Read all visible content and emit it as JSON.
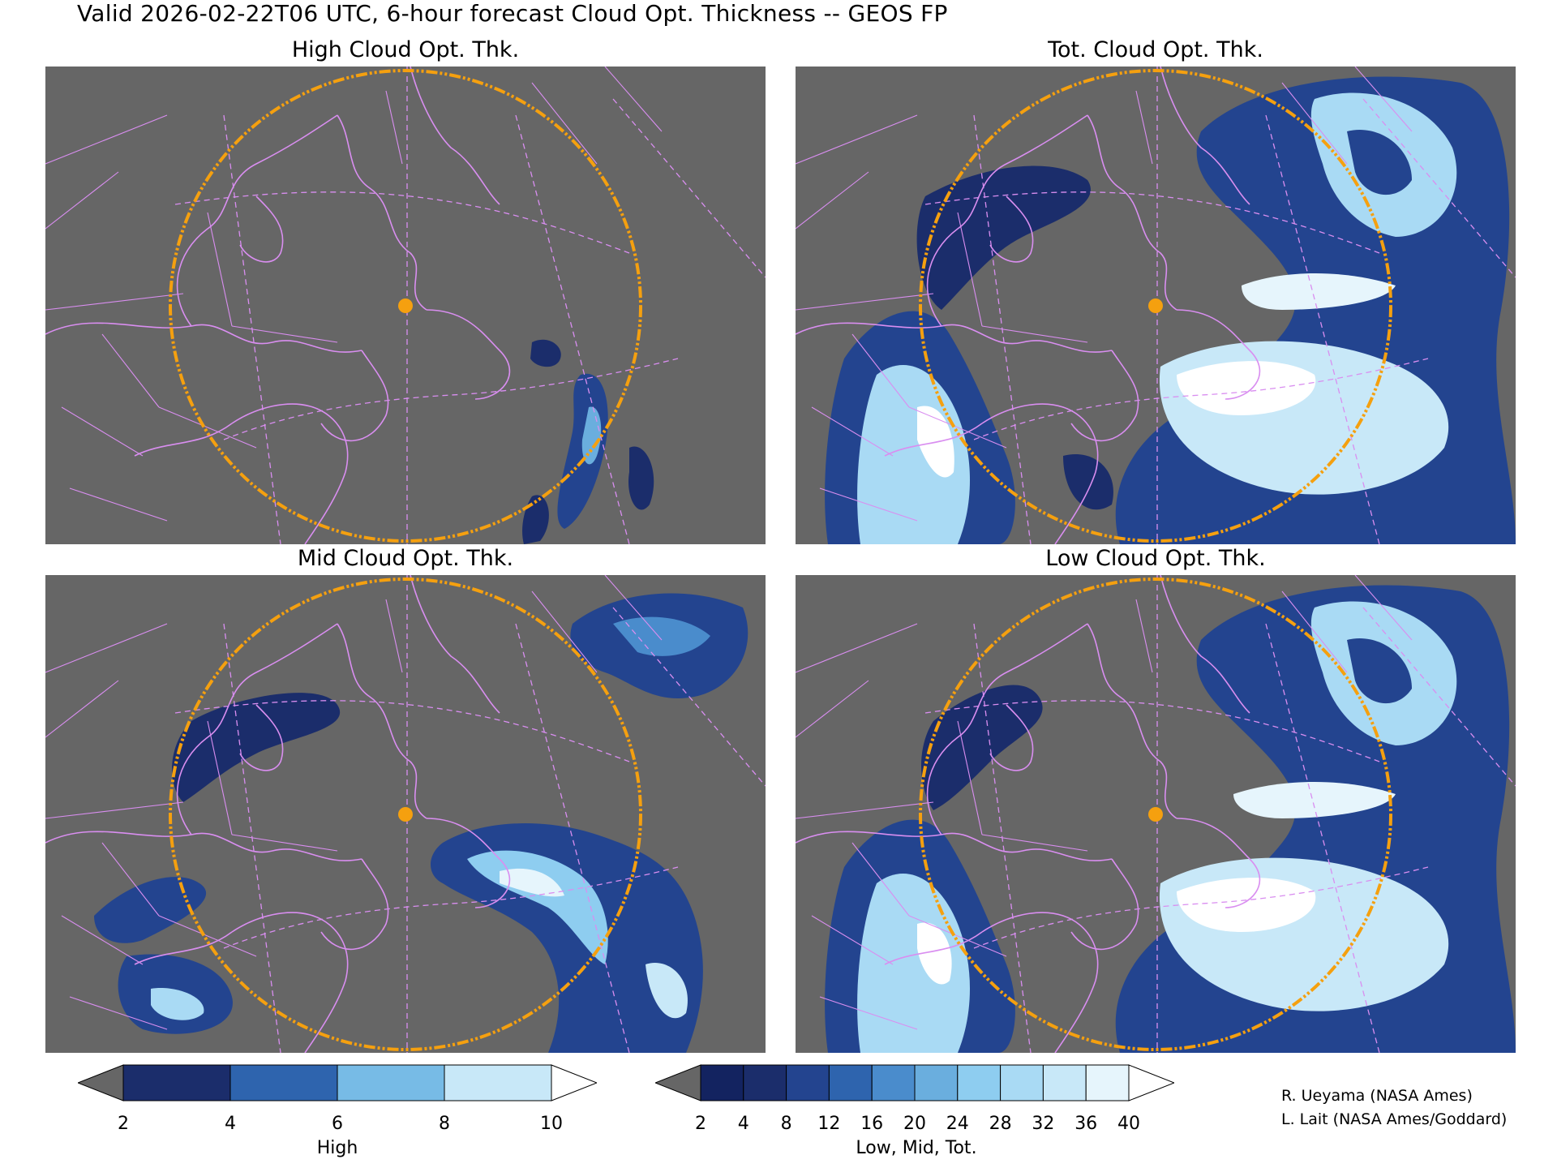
{
  "title": "Valid 2026-02-22T06 UTC, 6-hour forecast Cloud Opt. Thickness -- GEOS FP",
  "panels": [
    {
      "key": "high",
      "title": "High Cloud Opt. Thk."
    },
    {
      "key": "tot",
      "title": "Tot. Cloud Opt. Thk."
    },
    {
      "key": "mid",
      "title": "Mid Cloud Opt. Thk."
    },
    {
      "key": "low",
      "title": "Low Cloud Opt. Thk."
    }
  ],
  "colorbar_high": {
    "label": "High",
    "ticks": [
      "2",
      "4",
      "6",
      "8",
      "10"
    ],
    "colors": [
      "#666666",
      "#1b2d6b",
      "#2e64ae",
      "#77bbe6",
      "#c8e8f8",
      "#ffffff"
    ]
  },
  "colorbar_lmt": {
    "label": "Low, Mid, Tot.",
    "ticks": [
      "2",
      "4",
      "8",
      "12",
      "16",
      "20",
      "24",
      "28",
      "32",
      "36",
      "40"
    ],
    "colors": [
      "#666666",
      "#132360",
      "#1b2d6b",
      "#23448f",
      "#2e64ae",
      "#4a8ccc",
      "#6aaede",
      "#8ecdf0",
      "#a9daf4",
      "#c8e8f8",
      "#e6f5fc",
      "#ffffff"
    ]
  },
  "colors": {
    "background": "#666666",
    "map_lines": "#d98ef0",
    "range_ring": "#f5a00f",
    "site_marker": "#f5a00f"
  },
  "credits": {
    "line1": "R. Ueyama (NASA Ames)",
    "line2": "L. Lait (NASA Ames/Goddard)"
  }
}
